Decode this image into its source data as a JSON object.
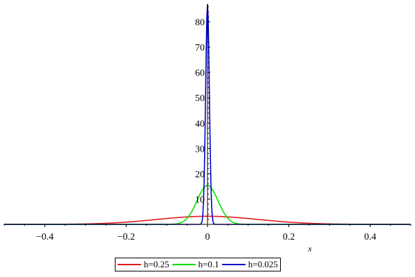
{
  "chart_data": {
    "type": "line",
    "title": "",
    "xlabel": "x",
    "ylabel": "",
    "xlim": [
      -0.5,
      0.5
    ],
    "ylim": [
      0,
      87
    ],
    "x_ticks": [
      -0.4,
      -0.2,
      0,
      0.2,
      0.4
    ],
    "x_tick_labels": [
      "−0.4",
      "−0.2",
      "0",
      "0.2",
      "0.4"
    ],
    "y_ticks": [
      10,
      20,
      30,
      40,
      50,
      60,
      70,
      80
    ],
    "y_tick_labels": [
      "10",
      "20",
      "30",
      "40",
      "50",
      "60",
      "70",
      "80"
    ],
    "grid": false,
    "legend_position": "bottom-center",
    "x": [
      -0.5,
      -0.4,
      -0.3,
      -0.2,
      -0.15,
      -0.1,
      -0.075,
      -0.05,
      -0.04,
      -0.03,
      -0.02,
      -0.01,
      0,
      0.01,
      0.02,
      0.03,
      0.04,
      0.05,
      0.075,
      0.1,
      0.15,
      0.2,
      0.3,
      0.4,
      0.5
    ],
    "series": [
      {
        "name": "h=0.25",
        "color": "#e41a1c",
        "values": [
          0.3,
          0.5,
          1.0,
          1.8,
          2.3,
          2.7,
          2.9,
          3.0,
          3.1,
          3.2,
          3.2,
          3.2,
          3.2,
          3.2,
          3.2,
          3.2,
          3.1,
          3.0,
          2.9,
          2.7,
          2.3,
          1.8,
          1.0,
          0.5,
          0.3
        ]
      },
      {
        "name": "h=0.1",
        "color": "#00e000",
        "values": [
          0.0,
          0.0,
          0.1,
          0.6,
          2.7,
          6.9,
          10.0,
          12.5,
          13.5,
          14.3,
          14.9,
          15.2,
          15.3,
          15.2,
          14.9,
          14.3,
          13.5,
          12.5,
          10.0,
          6.9,
          2.7,
          0.6,
          0.1,
          0.0,
          0.0
        ]
      },
      {
        "name": "h=0.025",
        "color": "#0000cc",
        "values": [
          0.0,
          0.0,
          0.0,
          0.0,
          0.0,
          0.0,
          0.0,
          2.5,
          7.0,
          17.0,
          37.0,
          66.0,
          87.0,
          66.0,
          37.0,
          17.0,
          7.0,
          2.5,
          0.0,
          0.0,
          0.0,
          0.0,
          0.0,
          0.0,
          0.0
        ]
      }
    ]
  }
}
